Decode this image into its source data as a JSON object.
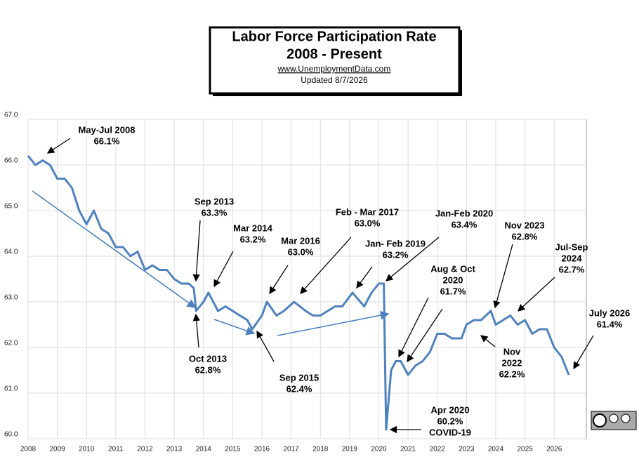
{
  "chart_data": {
    "type": "line",
    "title": "Labor Force Participation Rate",
    "subtitle": "2008 - Present",
    "source": "www.UnemploymentData.com",
    "updated": "Updated  8/7/2026",
    "x": [
      2008.0,
      2008.25,
      2008.5,
      2008.75,
      2009.0,
      2009.25,
      2009.5,
      2009.75,
      2010.0,
      2010.25,
      2010.5,
      2010.75,
      2011.0,
      2011.25,
      2011.5,
      2011.75,
      2012.0,
      2012.25,
      2012.5,
      2012.75,
      2013.0,
      2013.25,
      2013.5,
      2013.67,
      2013.75,
      2014.0,
      2014.17,
      2014.5,
      2014.75,
      2015.0,
      2015.25,
      2015.5,
      2015.67,
      2016.0,
      2016.17,
      2016.5,
      2016.75,
      2017.1,
      2017.5,
      2017.75,
      2018.0,
      2018.25,
      2018.5,
      2018.75,
      2019.1,
      2019.5,
      2019.75,
      2020.0,
      2020.17,
      2020.25,
      2020.42,
      2020.58,
      2020.75,
      2021.0,
      2021.25,
      2021.5,
      2021.75,
      2022.0,
      2022.25,
      2022.5,
      2022.83,
      2023.0,
      2023.25,
      2023.5,
      2023.83,
      2024.0,
      2024.5,
      2024.75,
      2025.0,
      2025.25,
      2025.5,
      2025.75,
      2026.0,
      2026.25,
      2026.5
    ],
    "series": [
      {
        "color": "#4f81bd",
        "values": [
          66.2,
          66.0,
          66.1,
          66.0,
          65.7,
          65.7,
          65.5,
          65.0,
          64.7,
          65.0,
          64.6,
          64.5,
          64.2,
          64.2,
          64.0,
          64.1,
          63.7,
          63.8,
          63.7,
          63.7,
          63.5,
          63.4,
          63.4,
          63.3,
          62.8,
          63.0,
          63.2,
          62.8,
          62.9,
          62.8,
          62.7,
          62.6,
          62.4,
          62.7,
          63.0,
          62.7,
          62.8,
          63.0,
          62.8,
          62.7,
          62.7,
          62.8,
          62.9,
          62.9,
          63.2,
          62.9,
          63.2,
          63.4,
          63.4,
          60.2,
          61.5,
          61.7,
          61.7,
          61.4,
          61.6,
          61.7,
          61.9,
          62.3,
          62.3,
          62.2,
          62.2,
          62.5,
          62.6,
          62.6,
          62.8,
          62.5,
          62.7,
          62.5,
          62.6,
          62.3,
          62.4,
          62.4,
          62.0,
          61.8,
          61.4
        ]
      }
    ],
    "xlim": [
      2008,
      2027.1
    ],
    "xticks": [
      2008,
      2009,
      2010,
      2011,
      2012,
      2013,
      2014,
      2015,
      2016,
      2017,
      2018,
      2019,
      2020,
      2021,
      2022,
      2023,
      2024,
      2025,
      2026
    ],
    "ylim": [
      60,
      67
    ],
    "yticks": [
      {
        "value": 60,
        "label": "60.0"
      },
      {
        "value": 61,
        "label": "61.0"
      },
      {
        "value": 62,
        "label": "62.0"
      },
      {
        "value": 63,
        "label": "63.0"
      },
      {
        "value": 64,
        "label": "64.0"
      },
      {
        "value": 65,
        "label": "65.0"
      },
      {
        "value": 66,
        "label": "66.0"
      },
      {
        "value": 67,
        "label": "67.0"
      }
    ],
    "grid": true,
    "annotations": [
      [
        "May-Jul 2008",
        "66.1%"
      ],
      [
        "Sep 2013",
        "63.3%"
      ],
      [
        "Mar 2014",
        "63.2%"
      ],
      [
        "Mar 2016",
        "63.0%"
      ],
      [
        "Feb - Mar 2017",
        "63.0%"
      ],
      [
        "Jan- Feb 2019",
        "63.2%"
      ],
      [
        "Jan-Feb 2020",
        "63.4%"
      ],
      [
        "Aug & Oct",
        "2020",
        "61.7%"
      ],
      [
        "Nov 2023",
        "62.8%"
      ],
      [
        "Jul-Sep",
        "2024",
        "62.7%"
      ],
      [
        "July 2026",
        "61.4%"
      ],
      [
        "Oct 2013",
        "62.8%"
      ],
      [
        "Sep 2015",
        "62.4%"
      ],
      [
        "Nov",
        "2022",
        "62.2%"
      ],
      [
        "Apr 2020",
        "60.2%",
        "COVID-19"
      ]
    ]
  }
}
